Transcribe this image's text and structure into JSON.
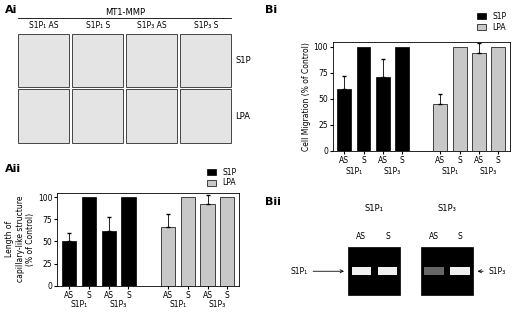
{
  "chart_data": [
    {
      "type": "bar",
      "title": "Aii",
      "categories": [
        "AS",
        "S",
        "AS",
        "S",
        null,
        "AS",
        "S",
        "AS",
        "S"
      ],
      "group_labels": [
        "S1P₁",
        "S1P₃",
        "S1P₁",
        "S1P₃"
      ],
      "ylabel": "Length of\ncapillary-like structure\n(% of Control)",
      "ylim": [
        0,
        105
      ],
      "yticks": [
        0,
        25,
        50,
        75,
        100
      ],
      "legend": "upper right",
      "series": [
        {
          "name": "S1P",
          "color": "#000000",
          "values": [
            50,
            100,
            62,
            100,
            null,
            null,
            null,
            null,
            null
          ],
          "errors": [
            9,
            null,
            15,
            null,
            null,
            null,
            null,
            null,
            null
          ]
        },
        {
          "name": "LPA",
          "color": "#c8c8c8",
          "values": [
            null,
            null,
            null,
            null,
            null,
            66,
            100,
            92,
            100
          ],
          "errors": [
            null,
            null,
            null,
            null,
            null,
            15,
            null,
            10,
            null
          ]
        }
      ]
    },
    {
      "type": "bar",
      "title": "Bi",
      "categories": [
        "AS",
        "S",
        "AS",
        "S",
        null,
        "AS",
        "S",
        "AS",
        "S"
      ],
      "group_labels": [
        "S1P₁",
        "S1P₃",
        "S1P₁",
        "S1P₃"
      ],
      "ylabel": "Cell Migration (% of Control)",
      "ylim": [
        0,
        105
      ],
      "yticks": [
        0,
        25,
        50,
        75,
        100
      ],
      "legend": "upper right",
      "series": [
        {
          "name": "S1P",
          "color": "#000000",
          "values": [
            60,
            100,
            71,
            100,
            null,
            null,
            null,
            null,
            null
          ],
          "errors": [
            12,
            null,
            17,
            null,
            null,
            null,
            null,
            null,
            null
          ]
        },
        {
          "name": "LPA",
          "color": "#c8c8c8",
          "values": [
            null,
            null,
            null,
            null,
            null,
            45,
            100,
            94,
            100
          ],
          "errors": [
            null,
            null,
            null,
            null,
            null,
            10,
            null,
            10,
            null
          ]
        }
      ]
    }
  ],
  "panel_Ai": {
    "label": "Ai",
    "title": "MT1-MMP",
    "columns": [
      "S1P₁ AS",
      "S1P₁ S",
      "S1P₃ AS",
      "S1P₃ S"
    ],
    "rows": [
      "S1P",
      "LPA"
    ]
  },
  "panel_Bii": {
    "label": "Bii",
    "gels": [
      {
        "title": "S1P₁",
        "lanes": [
          "AS",
          "S"
        ],
        "arrow": "S1P₁"
      },
      {
        "title": "S1P₃",
        "lanes": [
          "AS",
          "S"
        ],
        "arrow": "S1P₃"
      }
    ]
  }
}
